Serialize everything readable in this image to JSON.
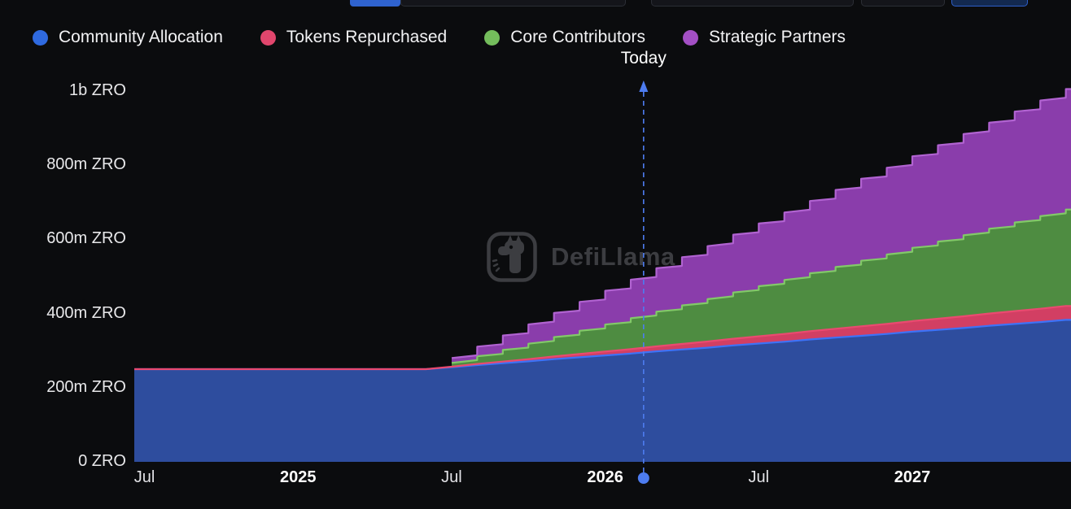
{
  "legend": {
    "items": [
      {
        "label": "Community Allocation",
        "color": "#2f6ae0"
      },
      {
        "label": "Tokens Repurchased",
        "color": "#e1466d"
      },
      {
        "label": "Core Contributors",
        "color": "#74bd5c"
      },
      {
        "label": "Strategic Partners",
        "color": "#a34fc4"
      }
    ]
  },
  "watermark": {
    "text": "DefiLlama"
  },
  "chart_data": {
    "type": "area",
    "stacked": true,
    "unit": "ZRO",
    "x_start": "2024-07",
    "cadence": "monthly",
    "y_max_millions": 1000,
    "y_ticks": [
      {
        "value": 0,
        "label": "0 ZRO"
      },
      {
        "value": 200,
        "label": "200m ZRO"
      },
      {
        "value": 400,
        "label": "400m ZRO"
      },
      {
        "value": 600,
        "label": "600m ZRO"
      },
      {
        "value": 800,
        "label": "800m ZRO"
      },
      {
        "value": 1000,
        "label": "1b ZRO"
      }
    ],
    "x_ticks": [
      {
        "month": 0,
        "label": "Jul",
        "bold": false
      },
      {
        "month": 6,
        "label": "2025",
        "bold": true
      },
      {
        "month": 12,
        "label": "Jul",
        "bold": false
      },
      {
        "month": 18,
        "label": "2026",
        "bold": true
      },
      {
        "month": 24,
        "label": "Jul",
        "bold": false
      },
      {
        "month": 30,
        "label": "2027",
        "bold": true
      }
    ],
    "series": [
      {
        "name": "Community Allocation",
        "interpolation": "linear",
        "color_line": "#3e72f7",
        "color_fill": "#2e4d9e",
        "values_millions": [
          250,
          250,
          250,
          250,
          250,
          250,
          250,
          250,
          250,
          250,
          250,
          250,
          255,
          261,
          266,
          271,
          277,
          282,
          287,
          292,
          298,
          303,
          308,
          314,
          319,
          324,
          330,
          335,
          340,
          345,
          351,
          356,
          361,
          367,
          372,
          377,
          383
        ]
      },
      {
        "name": "Tokens Repurchased",
        "interpolation": "linear",
        "color_line": "#ea4a70",
        "color_fill": "#d23f63",
        "values_millions": [
          0,
          0,
          0,
          0,
          0,
          0,
          0,
          0,
          0,
          0,
          0,
          0,
          1.5,
          3,
          4.5,
          6,
          7.5,
          9,
          10.5,
          12,
          13.5,
          15,
          16.5,
          18,
          19.5,
          21,
          22.5,
          24,
          25.5,
          27,
          28.5,
          30,
          31.5,
          33,
          34.5,
          36,
          37.5
        ]
      },
      {
        "name": "Core Contributors",
        "interpolation": "step",
        "color_line": "#82c968",
        "color_fill": "#4e8c41",
        "values_millions": [
          0,
          0,
          0,
          0,
          0,
          0,
          0,
          0,
          0,
          0,
          0,
          0,
          10.4,
          20.8,
          31.2,
          41.6,
          52,
          62.4,
          72.8,
          83.2,
          93.6,
          104,
          114.4,
          124.8,
          135.2,
          145.6,
          156,
          166.4,
          176.8,
          187.2,
          197.6,
          208,
          218.4,
          228.8,
          239.2,
          249.6,
          260
        ]
      },
      {
        "name": "Strategic Partners",
        "interpolation": "step",
        "color_line": "#b163d1",
        "color_fill": "#8a3dab",
        "values_millions": [
          0,
          0,
          0,
          0,
          0,
          0,
          0,
          0,
          0,
          0,
          0,
          0,
          13,
          26,
          39,
          52,
          65,
          78,
          91,
          104,
          117,
          130,
          143,
          156,
          169,
          182,
          195,
          208,
          221,
          234,
          247,
          260,
          273,
          286,
          299,
          312,
          325
        ]
      }
    ],
    "today": {
      "label": "Today",
      "month_index": 19.5,
      "color": "#4d7cf0"
    }
  }
}
